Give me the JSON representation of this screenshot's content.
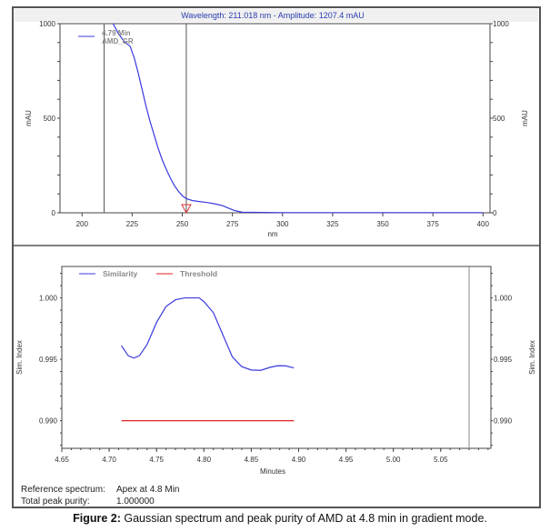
{
  "caption": {
    "label": "Figure 2:",
    "text": " Gaussian spectrum and peak purity of AMD at 4.8 min in gradient mode."
  },
  "chart_data": [
    {
      "type": "line",
      "title": "Wavelength:  211.018 nm - Amplitude:  1207.4 mAU",
      "xlabel": "nm",
      "ylabel": "mAU",
      "xlim": [
        189,
        403.5
      ],
      "ylim": [
        0,
        1000
      ],
      "xticks": [
        200,
        225,
        250,
        275,
        300,
        325,
        350,
        375,
        400
      ],
      "yticks": [
        0,
        500,
        1000
      ],
      "legend": {
        "line1": "4.79 Min",
        "line2": "AMD_GR",
        "placement": "top-left"
      },
      "cursor_lines_nm": [
        211,
        252
      ],
      "marker_nm": 252,
      "series": [
        {
          "color": "#3a3adf",
          "x": [
            215.5,
            218,
            221,
            224,
            226,
            228,
            230,
            232,
            234,
            236,
            238,
            240,
            242,
            244,
            246,
            248,
            250,
            252,
            255,
            258,
            262,
            266,
            270,
            273,
            276,
            280,
            290,
            300,
            350,
            400
          ],
          "y": [
            1000,
            950,
            905,
            880,
            820,
            740,
            650,
            560,
            480,
            410,
            340,
            280,
            230,
            185,
            145,
            115,
            90,
            75,
            65,
            60,
            55,
            48,
            38,
            25,
            12,
            3,
            2,
            1,
            1,
            1
          ]
        }
      ]
    },
    {
      "type": "line",
      "xlabel": "Minutes",
      "ylabel": "Sim. Index",
      "xlim": [
        4.65,
        5.103
      ],
      "ylim": [
        0.98775,
        1.00256
      ],
      "xticks": [
        "4.65",
        "4.70",
        "4.75",
        "4.80",
        "4.85",
        "4.90",
        "4.95",
        "5.00",
        "5.05"
      ],
      "yticks": [
        "0.990",
        "0.995",
        "1.000"
      ],
      "cursor_line_min": 5.08,
      "legend_placement": "top-left",
      "series": [
        {
          "name": "Similarity",
          "color": "#3a3adf",
          "x": [
            4.713,
            4.72,
            4.726,
            4.732,
            4.74,
            4.75,
            4.76,
            4.77,
            4.78,
            4.79,
            4.795,
            4.8,
            4.81,
            4.82,
            4.83,
            4.84,
            4.85,
            4.86,
            4.87,
            4.878,
            4.886,
            4.895
          ],
          "y": [
            0.9961,
            0.9953,
            0.9951,
            0.9953,
            0.9962,
            0.998,
            0.9993,
            0.99985,
            1.0,
            1.0,
            1.0,
            0.9997,
            0.9988,
            0.997,
            0.9952,
            0.9944,
            0.99413,
            0.9941,
            0.99435,
            0.99448,
            0.99447,
            0.9943
          ]
        },
        {
          "name": "Threshold",
          "color": "#e02020",
          "x": [
            4.713,
            4.895
          ],
          "y": [
            0.99,
            0.99
          ]
        }
      ]
    }
  ],
  "info": {
    "ref_label": "Reference spectrum:",
    "ref_value": "Apex at 4.8 Min",
    "purity_label": "Total peak purity:",
    "purity_value": "1.000000"
  }
}
